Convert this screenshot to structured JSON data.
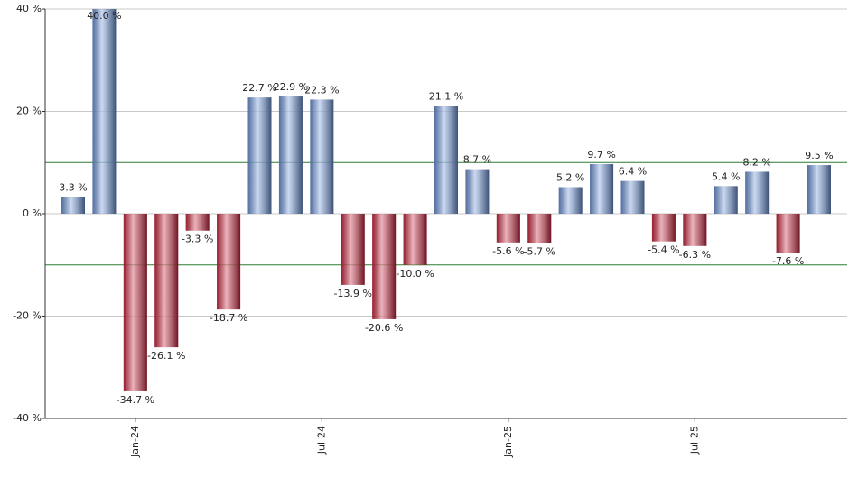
{
  "chart_data": {
    "type": "bar",
    "categories": [
      null,
      null,
      "Jan-24",
      null,
      null,
      null,
      null,
      null,
      "Jul-24",
      null,
      null,
      null,
      null,
      null,
      "Jan-25",
      null,
      null,
      null,
      null,
      null,
      "Jul-25",
      null,
      null,
      null,
      null
    ],
    "values": [
      3.3,
      40.0,
      -34.7,
      -26.1,
      -3.3,
      -18.7,
      22.7,
      22.9,
      22.3,
      -13.9,
      -20.6,
      -10.0,
      21.1,
      8.7,
      -5.6,
      -5.7,
      5.2,
      9.7,
      6.4,
      -5.4,
      -6.3,
      5.4,
      8.2,
      -7.6,
      9.5
    ],
    "value_labels": [
      "3.3 %",
      "40.0 %",
      "-34.7 %",
      "-26.1 %",
      "-3.3 %",
      "-18.7 %",
      "22.7 %",
      "22.9 %",
      "22.3 %",
      "-13.9 %",
      "-20.6 %",
      "-10.0 %",
      "21.1 %",
      "8.7 %",
      "-5.6 %",
      "-5.7 %",
      "5.2 %",
      "9.7 %",
      "6.4 %",
      "-5.4 %",
      "-6.3 %",
      "5.4 %",
      "8.2 %",
      "-7.6 %",
      "9.5 %"
    ],
    "positive_color": "#6f95d8",
    "negative_color": "#c8283f",
    "ylim": [
      -40,
      40
    ],
    "yticks": [
      {
        "value": -40,
        "label": "-40 %"
      },
      {
        "value": -20,
        "label": "-20 %"
      },
      {
        "value": 0,
        "label": "0 %"
      },
      {
        "value": 20,
        "label": "20 %"
      },
      {
        "value": 40,
        "label": "40 %"
      }
    ],
    "reference_lines": [
      10,
      -10
    ],
    "reference_color": "#2e7d32",
    "grid": true
  }
}
